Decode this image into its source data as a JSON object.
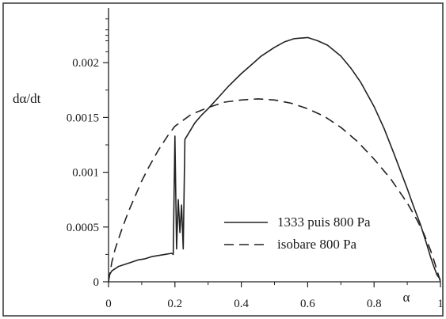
{
  "chart_data": {
    "type": "line",
    "xlabel": "α",
    "ylabel": "dα/dt",
    "xlim": [
      0,
      1
    ],
    "ylim": [
      0,
      0.0025
    ],
    "x_ticks": [
      {
        "value": 0,
        "label": "0"
      },
      {
        "value": 0.2,
        "label": "0.2"
      },
      {
        "value": 0.4,
        "label": "0.4"
      },
      {
        "value": 0.6,
        "label": "0.6"
      },
      {
        "value": 0.8,
        "label": "0.8"
      },
      {
        "value": 1.0,
        "label": "1"
      }
    ],
    "y_ticks": [
      {
        "value": 0,
        "label": "0"
      },
      {
        "value": 0.0005,
        "label": "0.0005"
      },
      {
        "value": 0.001,
        "label": "0.001"
      },
      {
        "value": 0.0015,
        "label": "0.0015"
      },
      {
        "value": 0.002,
        "label": "0.002"
      }
    ],
    "legend_position": "lower-right",
    "series": [
      {
        "name": "1333 puis 800 Pa",
        "style": "solid",
        "color": "#222222",
        "x": [
          0.0,
          0.01,
          0.02,
          0.03,
          0.05,
          0.07,
          0.09,
          0.11,
          0.13,
          0.15,
          0.17,
          0.19,
          0.195,
          0.2,
          0.205,
          0.21,
          0.215,
          0.22,
          0.225,
          0.23,
          0.24,
          0.26,
          0.28,
          0.3,
          0.33,
          0.36,
          0.4,
          0.43,
          0.46,
          0.5,
          0.53,
          0.56,
          0.6,
          0.63,
          0.66,
          0.7,
          0.73,
          0.76,
          0.8,
          0.83,
          0.86,
          0.9,
          0.92,
          0.94,
          0.96,
          0.97,
          0.98,
          0.99,
          1.0
        ],
        "y": [
          5e-05,
          0.0001,
          0.00012,
          0.00014,
          0.00016,
          0.00018,
          0.0002,
          0.00021,
          0.00023,
          0.00024,
          0.00025,
          0.00026,
          0.00025,
          0.00133,
          0.0003,
          0.00075,
          0.00045,
          0.0007,
          0.0003,
          0.0013,
          0.00135,
          0.00145,
          0.00152,
          0.00158,
          0.00168,
          0.00178,
          0.0019,
          0.00198,
          0.00206,
          0.00214,
          0.00219,
          0.00222,
          0.00223,
          0.0022,
          0.00216,
          0.00206,
          0.00195,
          0.00182,
          0.0016,
          0.0014,
          0.00117,
          0.00085,
          0.00068,
          0.00052,
          0.00033,
          0.00023,
          0.00014,
          6e-05,
          2e-05
        ]
      },
      {
        "name": "isobare 800 Pa",
        "style": "dashed",
        "color": "#222222",
        "x": [
          0.0,
          0.01,
          0.02,
          0.04,
          0.06,
          0.08,
          0.1,
          0.12,
          0.15,
          0.18,
          0.2,
          0.25,
          0.3,
          0.35,
          0.4,
          0.45,
          0.5,
          0.55,
          0.6,
          0.65,
          0.7,
          0.75,
          0.8,
          0.85,
          0.9,
          0.93,
          0.95,
          0.97,
          0.98,
          0.99,
          1.0
        ],
        "y": [
          0.0,
          0.00018,
          0.0003,
          0.00048,
          0.00064,
          0.00078,
          0.00092,
          0.00104,
          0.0012,
          0.00134,
          0.00142,
          0.00153,
          0.00159,
          0.00164,
          0.00166,
          0.00167,
          0.00166,
          0.00163,
          0.00158,
          0.00151,
          0.00141,
          0.00128,
          0.00112,
          0.00094,
          0.00072,
          0.00056,
          0.00044,
          0.00029,
          0.0002,
          0.0001,
          0.0
        ]
      }
    ]
  }
}
